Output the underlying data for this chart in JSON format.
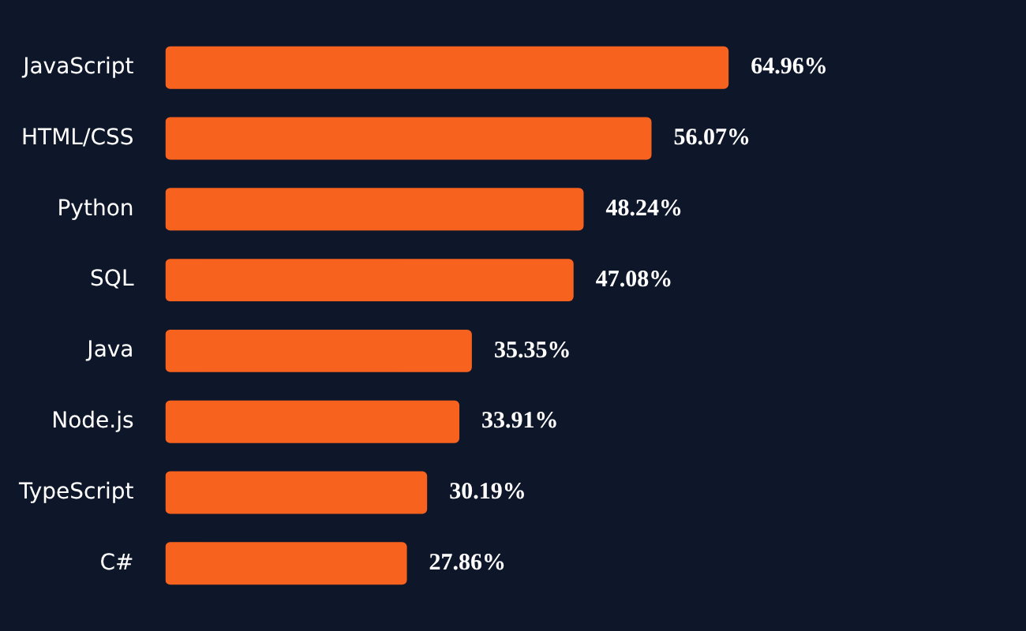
{
  "chart_data": {
    "type": "bar",
    "orientation": "horizontal",
    "categories": [
      "JavaScript",
      "HTML/CSS",
      "Python",
      "SQL",
      "Java",
      "Node.js",
      "TypeScript",
      "C#"
    ],
    "values": [
      64.96,
      56.07,
      48.24,
      47.08,
      35.35,
      33.91,
      30.19,
      27.86
    ],
    "value_labels": [
      "64.96%",
      "56.07%",
      "48.24%",
      "47.08%",
      "35.35%",
      "33.91%",
      "30.19%",
      "27.86%"
    ],
    "color": "#f7631f"
  }
}
